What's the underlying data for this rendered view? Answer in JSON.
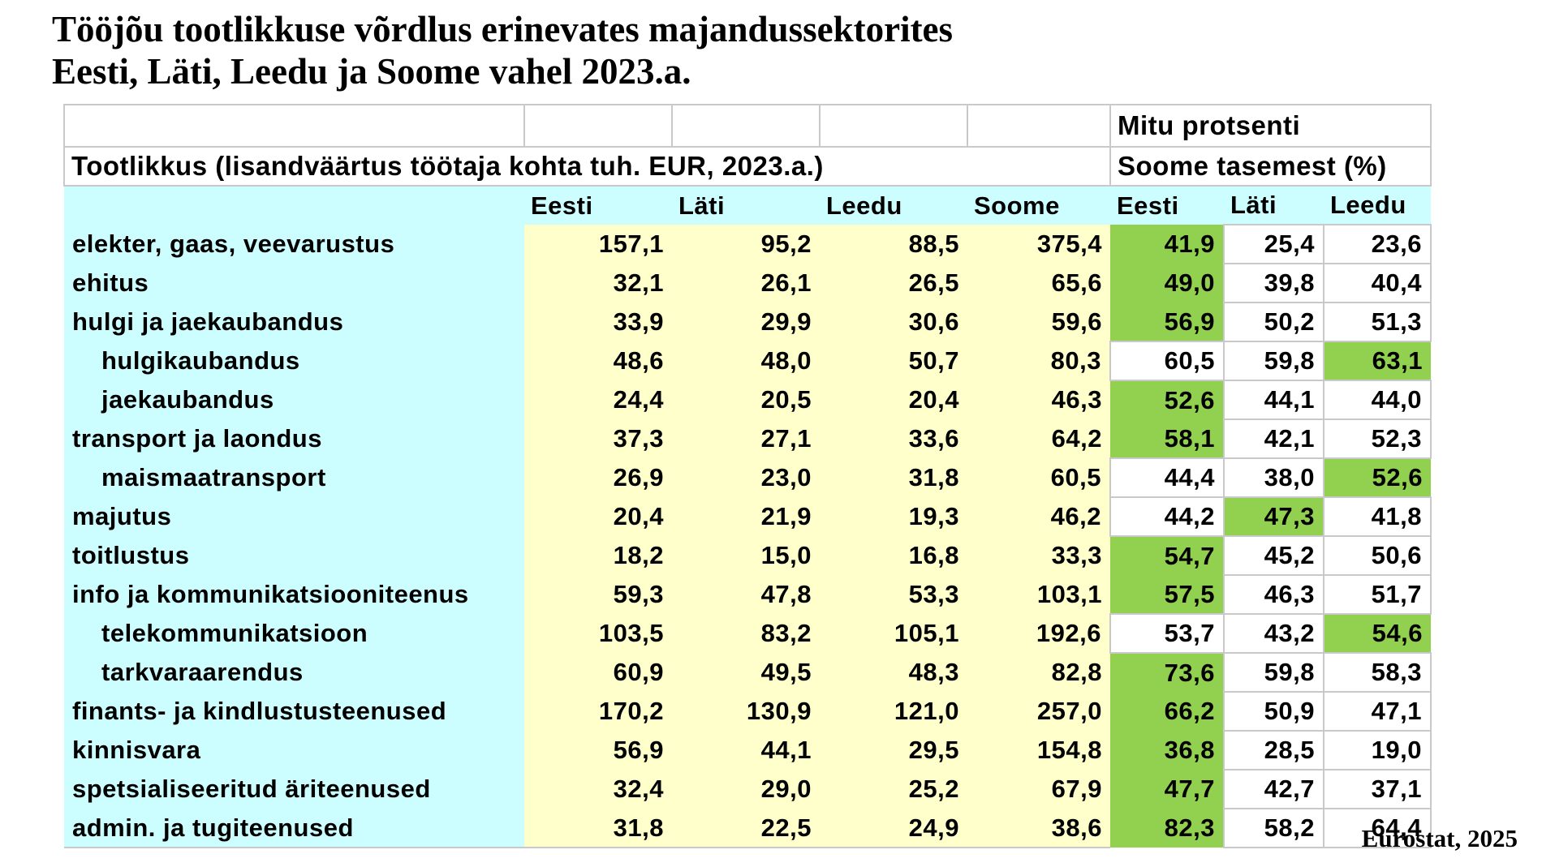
{
  "title": {
    "line1": "Tööjõu tootlikkuse võrdlus erinevates majandussektorites",
    "line2": "Eesti, Läti, Leedu ja Soome vahel 2023.a."
  },
  "source_note": "Eurostat, 2025",
  "colors": {
    "header_cyan": "#ccfeff",
    "cell_yellow": "#ffffcc",
    "highlight_green": "#92d050",
    "gridline": "#c9c9c9"
  },
  "table": {
    "title_productivity": "Tootlikkus (lisandväärtus töötaja kohta tuh. EUR, 2023.a.)",
    "title_percent_line1": "Mitu protsenti",
    "title_percent_line2": "Soome tasemest (%)",
    "country_columns": [
      "Eesti",
      "Läti",
      "Leedu",
      "Soome"
    ],
    "percent_columns": [
      "Eesti",
      "Läti",
      "Leedu"
    ],
    "rows": [
      {
        "sector": "elekter, gaas, veevarustus",
        "indent": false,
        "productivity": [
          "157,1",
          "95,2",
          "88,5",
          "375,4"
        ],
        "percent": [
          "41,9",
          "25,4",
          "23,6"
        ],
        "highlight": [
          true,
          false,
          false
        ]
      },
      {
        "sector": "ehitus",
        "indent": false,
        "productivity": [
          "32,1",
          "26,1",
          "26,5",
          "65,6"
        ],
        "percent": [
          "49,0",
          "39,8",
          "40,4"
        ],
        "highlight": [
          true,
          false,
          false
        ]
      },
      {
        "sector": "hulgi ja jaekaubandus",
        "indent": false,
        "productivity": [
          "33,9",
          "29,9",
          "30,6",
          "59,6"
        ],
        "percent": [
          "56,9",
          "50,2",
          "51,3"
        ],
        "highlight": [
          true,
          false,
          false
        ]
      },
      {
        "sector": "hulgikaubandus",
        "indent": true,
        "productivity": [
          "48,6",
          "48,0",
          "50,7",
          "80,3"
        ],
        "percent": [
          "60,5",
          "59,8",
          "63,1"
        ],
        "highlight": [
          false,
          false,
          true
        ]
      },
      {
        "sector": "jaekaubandus",
        "indent": true,
        "productivity": [
          "24,4",
          "20,5",
          "20,4",
          "46,3"
        ],
        "percent": [
          "52,6",
          "44,1",
          "44,0"
        ],
        "highlight": [
          true,
          false,
          false
        ]
      },
      {
        "sector": "transport ja laondus",
        "indent": false,
        "productivity": [
          "37,3",
          "27,1",
          "33,6",
          "64,2"
        ],
        "percent": [
          "58,1",
          "42,1",
          "52,3"
        ],
        "highlight": [
          true,
          false,
          false
        ]
      },
      {
        "sector": "maismaatransport",
        "indent": true,
        "productivity": [
          "26,9",
          "23,0",
          "31,8",
          "60,5"
        ],
        "percent": [
          "44,4",
          "38,0",
          "52,6"
        ],
        "highlight": [
          false,
          false,
          true
        ]
      },
      {
        "sector": "majutus",
        "indent": false,
        "productivity": [
          "20,4",
          "21,9",
          "19,3",
          "46,2"
        ],
        "percent": [
          "44,2",
          "47,3",
          "41,8"
        ],
        "highlight": [
          false,
          true,
          false
        ]
      },
      {
        "sector": "toitlustus",
        "indent": false,
        "productivity": [
          "18,2",
          "15,0",
          "16,8",
          "33,3"
        ],
        "percent": [
          "54,7",
          "45,2",
          "50,6"
        ],
        "highlight": [
          true,
          false,
          false
        ]
      },
      {
        "sector": "info ja kommunikatsiooniteenus",
        "indent": false,
        "productivity": [
          "59,3",
          "47,8",
          "53,3",
          "103,1"
        ],
        "percent": [
          "57,5",
          "46,3",
          "51,7"
        ],
        "highlight": [
          true,
          false,
          false
        ]
      },
      {
        "sector": "telekommunikatsioon",
        "indent": true,
        "productivity": [
          "103,5",
          "83,2",
          "105,1",
          "192,6"
        ],
        "percent": [
          "53,7",
          "43,2",
          "54,6"
        ],
        "highlight": [
          false,
          false,
          true
        ]
      },
      {
        "sector": "tarkvaraarendus",
        "indent": true,
        "productivity": [
          "60,9",
          "49,5",
          "48,3",
          "82,8"
        ],
        "percent": [
          "73,6",
          "59,8",
          "58,3"
        ],
        "highlight": [
          true,
          false,
          false
        ]
      },
      {
        "sector": "finants- ja kindlustusteenused",
        "indent": false,
        "productivity": [
          "170,2",
          "130,9",
          "121,0",
          "257,0"
        ],
        "percent": [
          "66,2",
          "50,9",
          "47,1"
        ],
        "highlight": [
          true,
          false,
          false
        ]
      },
      {
        "sector": "kinnisvara",
        "indent": false,
        "productivity": [
          "56,9",
          "44,1",
          "29,5",
          "154,8"
        ],
        "percent": [
          "36,8",
          "28,5",
          "19,0"
        ],
        "highlight": [
          true,
          false,
          false
        ]
      },
      {
        "sector": "spetsialiseeritud äriteenused",
        "indent": false,
        "productivity": [
          "32,4",
          "29,0",
          "25,2",
          "67,9"
        ],
        "percent": [
          "47,7",
          "42,7",
          "37,1"
        ],
        "highlight": [
          true,
          false,
          false
        ]
      },
      {
        "sector": "admin. ja tugiteenused",
        "indent": false,
        "productivity": [
          "31,8",
          "22,5",
          "24,9",
          "38,6"
        ],
        "percent": [
          "82,3",
          "58,2",
          "64,4"
        ],
        "highlight": [
          true,
          false,
          false
        ]
      }
    ]
  }
}
